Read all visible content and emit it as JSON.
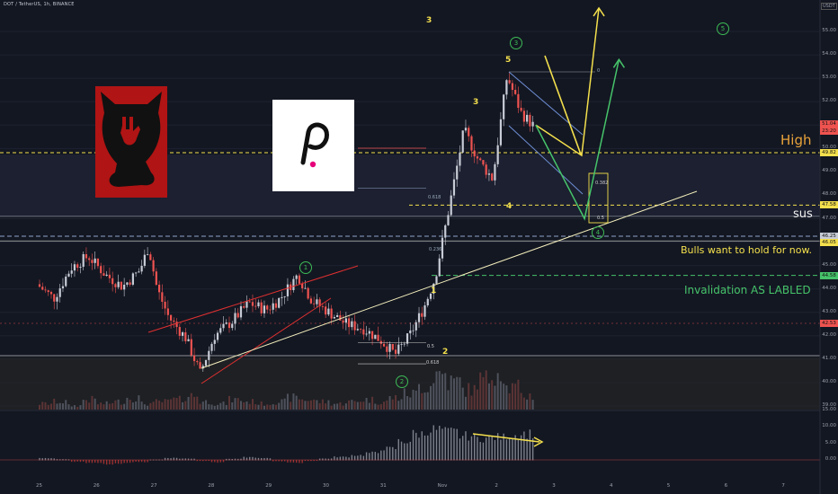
{
  "header": {
    "title": "DOT / TetherUS, 1h, BINANCE",
    "currency": "USDT"
  },
  "annotations": {
    "high": "High",
    "sus": "sus",
    "bulls": "Bulls want to hold for now.",
    "invalidation": "Invalidation AS LABLED"
  },
  "wave_labels": {
    "w3_top": "3",
    "w5": "5",
    "w3": "3",
    "w4": "4",
    "w1": "1",
    "w2": "2",
    "c1": "1",
    "c2": "2",
    "c3": "3",
    "c4": "4",
    "c5": "5"
  },
  "fib_labels": {
    "f618_top": "0.618",
    "f618_bottom": "0.618",
    "f05": "0.5",
    "f0382": "0.382",
    "f05b": "0.5",
    "f236": "0.236",
    "f0": "0"
  },
  "price_tags": [
    {
      "value": "51.04",
      "color": "#ef5350"
    },
    {
      "value": "23:20",
      "color": "#ef5350"
    },
    {
      "value": "49.82",
      "color": "#f4e04d"
    },
    {
      "value": "47.58",
      "color": "#f4e04d"
    },
    {
      "value": "46.25",
      "color": "#c8ccd6"
    },
    {
      "value": "46.05",
      "color": "#f4e04d"
    },
    {
      "value": "44.58",
      "color": "#46c46a"
    },
    {
      "value": "42.53",
      "color": "#ef5350"
    }
  ],
  "colors": {
    "bg": "#131722",
    "up": "#c8ccd6",
    "down": "#ef5350",
    "wave_yellow": "#f4e04d",
    "wave_green": "#46c46a",
    "trend_red": "#e03030",
    "trend_cream": "#f3eebc"
  },
  "chart_data": {
    "type": "candlestick",
    "title": "DOT / TetherUS, 1h, BINANCE",
    "x_ticks": [
      "25",
      "26",
      "27",
      "28",
      "29",
      "30",
      "31",
      "Nov",
      "2",
      "3",
      "4",
      "5",
      "6",
      "7"
    ],
    "y_ticks": [
      39.0,
      40.0,
      41.0,
      42.0,
      43.0,
      44.0,
      45.0,
      46.0,
      47.0,
      48.0,
      49.0,
      50.0,
      51.0,
      52.0,
      53.0,
      54.0,
      55.0
    ],
    "ylim": [
      38.8,
      56.2
    ],
    "osc_ticks": [
      0.0,
      5.0,
      10.0,
      15.0
    ],
    "osc_ylim": [
      -3,
      18
    ],
    "levels": {
      "high": 49.82,
      "sus": 47.58,
      "bulls": 46.05,
      "support": 46.25,
      "invalidation": 44.58,
      "current": 51.04,
      "low_line": 42.53
    },
    "price_path": [
      [
        25.0,
        44.2
      ],
      [
        25.3,
        43.6
      ],
      [
        25.6,
        44.9
      ],
      [
        25.9,
        45.4
      ],
      [
        26.2,
        44.6
      ],
      [
        26.5,
        44.1
      ],
      [
        26.8,
        44.8
      ],
      [
        26.95,
        45.8
      ],
      [
        27.1,
        44.0
      ],
      [
        27.3,
        42.8
      ],
      [
        27.6,
        41.9
      ],
      [
        27.85,
        40.4
      ],
      [
        28.1,
        42.0
      ],
      [
        28.4,
        42.6
      ],
      [
        28.7,
        43.4
      ],
      [
        29.0,
        43.1
      ],
      [
        29.25,
        43.6
      ],
      [
        29.55,
        44.6
      ],
      [
        29.8,
        43.5
      ],
      [
        30.1,
        43.0
      ],
      [
        30.4,
        42.5
      ],
      [
        30.7,
        42.3
      ],
      [
        31.0,
        41.8
      ],
      [
        31.25,
        41.2
      ],
      [
        31.5,
        42.0
      ],
      [
        31.75,
        43.2
      ],
      [
        31.95,
        44.5
      ],
      [
        32.2,
        47.6
      ],
      [
        32.45,
        50.8
      ],
      [
        32.7,
        49.5
      ],
      [
        32.95,
        48.7
      ],
      [
        33.2,
        53.1
      ],
      [
        33.45,
        51.5
      ],
      [
        33.65,
        51.0
      ]
    ],
    "volume": [
      3,
      4,
      2,
      5,
      3,
      4,
      6,
      3,
      4,
      5,
      7,
      4,
      3,
      5,
      4,
      3,
      4,
      6,
      5,
      4,
      3,
      4,
      5,
      4,
      6,
      8,
      12,
      18,
      14,
      10,
      15,
      20,
      11,
      7
    ],
    "oscillator": [
      0.5,
      0.2,
      -0.4,
      -0.8,
      -1.1,
      -0.9,
      -0.5,
      0.1,
      0.6,
      0.4,
      -0.2,
      -0.6,
      0.3,
      0.8,
      0.5,
      -0.3,
      -0.7,
      -0.2,
      0.4,
      0.9,
      1.4,
      2.1,
      3.4,
      5.6,
      7.8,
      9.1,
      8.4,
      7.2,
      6.5,
      6.8,
      7.4,
      7.9
    ],
    "projections": [
      {
        "name": "yellow",
        "points": [
          [
            33.65,
            51.0
          ],
          [
            34.45,
            49.7
          ],
          [
            34.75,
            56.0
          ]
        ]
      },
      {
        "name": "green",
        "points": [
          [
            33.65,
            51.0
          ],
          [
            34.5,
            47.0
          ],
          [
            35.1,
            53.8
          ]
        ]
      }
    ]
  }
}
